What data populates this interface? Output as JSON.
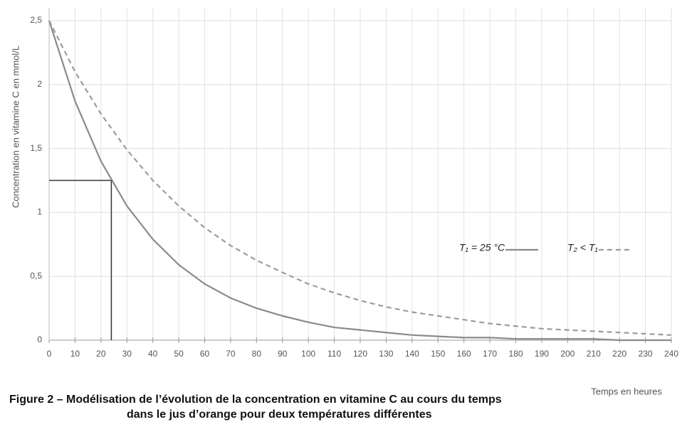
{
  "chart_data": {
    "type": "line",
    "title": [
      "Figure 2 – Modélisation de l’évolution de la concentration en vitamine C au cours du temps",
      "dans le jus d’orange pour deux températures différentes"
    ],
    "x_label": "Temps en heures",
    "y_label": "Concentration en vitamine C en mmol/L",
    "x": [
      0,
      10,
      20,
      30,
      40,
      50,
      60,
      70,
      80,
      90,
      100,
      110,
      120,
      130,
      140,
      150,
      160,
      170,
      180,
      190,
      200,
      210,
      220,
      230,
      240
    ],
    "series": [
      {
        "name": "T₁ = 25 °C",
        "color": "#8a8a8a",
        "style": "solid",
        "values": [
          2.5,
          1.87,
          1.4,
          1.05,
          0.79,
          0.59,
          0.44,
          0.33,
          0.25,
          0.19,
          0.14,
          0.1,
          0.08,
          0.06,
          0.04,
          0.03,
          0.02,
          0.02,
          0.01,
          0.01,
          0.01,
          0.01,
          0,
          0,
          0
        ]
      },
      {
        "name": "T₂ < T₁",
        "color": "#9c9c9c",
        "style": "dashed",
        "values": [
          2.5,
          2.1,
          1.77,
          1.49,
          1.25,
          1.05,
          0.88,
          0.74,
          0.625,
          0.53,
          0.44,
          0.37,
          0.31,
          0.26,
          0.22,
          0.19,
          0.16,
          0.13,
          0.11,
          0.09,
          0.08,
          0.07,
          0.06,
          0.05,
          0.04
        ]
      }
    ],
    "guide": {
      "x": 24,
      "y": 1.25
    },
    "xlim": [
      0,
      240
    ],
    "xticks": [
      0,
      10,
      20,
      30,
      40,
      50,
      60,
      70,
      80,
      90,
      100,
      110,
      120,
      130,
      140,
      150,
      160,
      170,
      180,
      190,
      200,
      210,
      220,
      230,
      240
    ],
    "ylim": [
      0,
      2.5
    ],
    "yticks": [
      0,
      {
        "value": 0.5,
        "label": "0,5"
      },
      1,
      {
        "value": 1.5,
        "label": "1,5"
      },
      2,
      {
        "value": 2.5,
        "label": "2,5"
      }
    ],
    "grid": true
  }
}
